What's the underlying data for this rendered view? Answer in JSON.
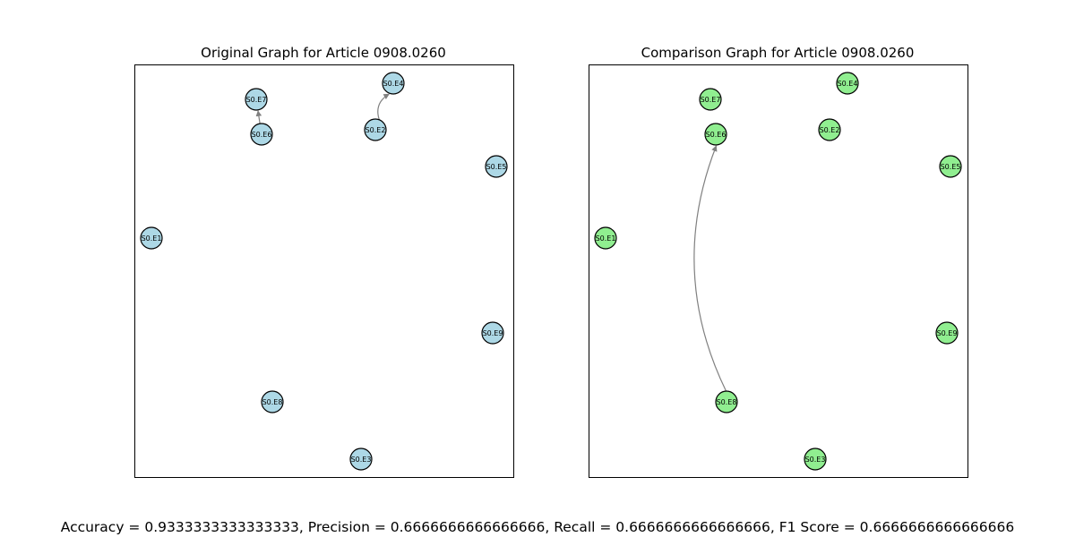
{
  "figure": {
    "panels": [
      {
        "title": "Original Graph for Article 0908.0260",
        "node_color": "#add8e6",
        "nodes": [
          "S0.E7",
          "S0.E4",
          "S0.E6",
          "S0.E2",
          "S0.E5",
          "S0.E1",
          "S0.E9",
          "S0.E8",
          "S0.E3"
        ],
        "edges": [
          {
            "from": "S0.E6",
            "to": "S0.E7"
          },
          {
            "from": "S0.E2",
            "to": "S0.E4"
          }
        ]
      },
      {
        "title": "Comparison Graph for Article 0908.0260",
        "node_color": "#90ee90",
        "nodes": [
          "S0.E7",
          "S0.E4",
          "S0.E6",
          "S0.E2",
          "S0.E5",
          "S0.E1",
          "S0.E9",
          "S0.E8",
          "S0.E3"
        ],
        "edges": [
          {
            "from": "S0.E8",
            "to": "S0.E6"
          }
        ]
      }
    ],
    "edge_color": "#808080",
    "metrics_text": "Accuracy = 0.9333333333333333, Precision = 0.6666666666666666, Recall = 0.6666666666666666, F1 Score = 0.6666666666666666"
  }
}
